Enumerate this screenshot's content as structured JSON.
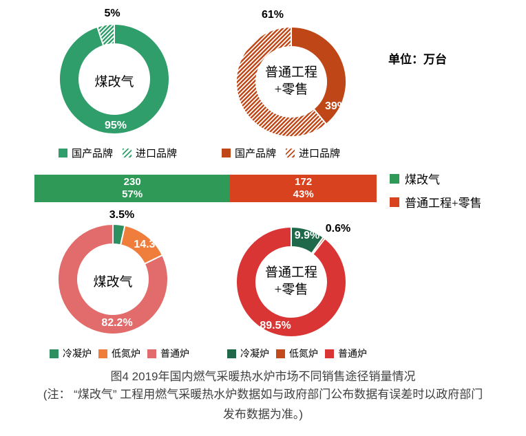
{
  "texts": {
    "unit_label": "单位：万台",
    "caption": "图4 2019年国内燃气采暖热水炉市场不同销售途径销量情况",
    "note_line1": "(注： “煤改气” 工程用燃气采暖热水炉数据如与政府部门公布数据有误差时以政府部门",
    "note_line2": "发布数据为准。)"
  },
  "chart_data": [
    {
      "id": "donut-meigaiqi-brand",
      "type": "pie",
      "donut": true,
      "title": "煤改气",
      "title_lines": [
        "煤改气"
      ],
      "legend_position": "bottom",
      "slices": [
        {
          "name": "国产品牌",
          "value": 95,
          "label": "95%",
          "color": "#2F9E6A",
          "hatch": false,
          "label_placement": "inside-bottom"
        },
        {
          "name": "进口品牌",
          "value": 5,
          "label": "5%",
          "color": "#2F9E6A",
          "hatch": true,
          "label_placement": "outside-top"
        }
      ]
    },
    {
      "id": "donut-putong-brand",
      "type": "pie",
      "donut": true,
      "title": "普通工程+零售",
      "title_lines": [
        "普通工程",
        "+零售"
      ],
      "legend_position": "bottom",
      "slices": [
        {
          "name": "国产品牌",
          "value": 39,
          "label": "39%",
          "color": "#BF4616",
          "hatch": false,
          "label_placement": "inside-right"
        },
        {
          "name": "进口品牌",
          "value": 61,
          "label": "61%",
          "color": "#BF4616",
          "hatch": true,
          "label_placement": "outside-top-left"
        }
      ]
    },
    {
      "id": "stacked-bar-total-sales",
      "type": "bar",
      "stacked": true,
      "orientation": "horizontal",
      "unit": "万台",
      "legend_position": "right",
      "segments": [
        {
          "name": "煤改气",
          "value": 230,
          "pct": "57%",
          "color": "#2F9A58"
        },
        {
          "name": "普通工程+零售",
          "value": 172,
          "pct": "43%",
          "color": "#D9421E"
        }
      ]
    },
    {
      "id": "donut-meigaiqi-type",
      "type": "pie",
      "donut": true,
      "title": "煤改气",
      "title_lines": [
        "煤改气"
      ],
      "legend_position": "bottom",
      "slices": [
        {
          "name": "冷凝炉",
          "value": 3.5,
          "label": "3.5%",
          "color": "#2E8F60",
          "hatch": false,
          "label_placement": "outside-top"
        },
        {
          "name": "低氮炉",
          "value": 14.3,
          "label": "14.3%",
          "color": "#EF7E3C",
          "hatch": false,
          "label_placement": "inside"
        },
        {
          "name": "普通炉",
          "value": 82.2,
          "label": "82.2%",
          "color": "#E26B6B",
          "hatch": false,
          "label_placement": "inside-bottom"
        }
      ]
    },
    {
      "id": "donut-putong-type",
      "type": "pie",
      "donut": true,
      "title": "普通工程+零售",
      "title_lines": [
        "普通工程",
        "+零售"
      ],
      "legend_position": "bottom",
      "slices": [
        {
          "name": "冷凝炉",
          "value": 9.9,
          "label": "9.9%",
          "color": "#20684A",
          "hatch": false,
          "label_placement": "inside-top"
        },
        {
          "name": "低氮炉",
          "value": 0.6,
          "label": "0.6%",
          "color": "#C24A1C",
          "hatch": false,
          "label_placement": "outside-top-right"
        },
        {
          "name": "普通炉",
          "value": 89.5,
          "label": "89.5%",
          "color": "#D93535",
          "hatch": false,
          "label_placement": "inside-bottom-left"
        }
      ]
    }
  ]
}
